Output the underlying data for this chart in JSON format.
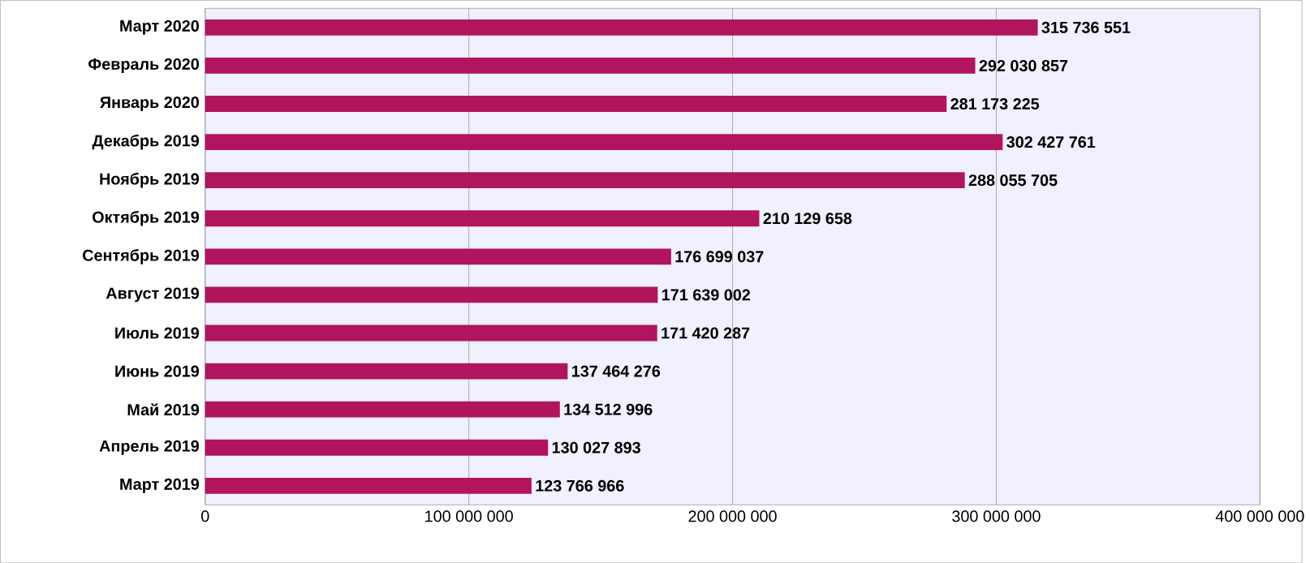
{
  "chart_data": {
    "type": "bar",
    "orientation": "horizontal",
    "categories": [
      "Март 2020",
      "Февраль 2020",
      "Январь 2020",
      "Декабрь 2019",
      "Ноябрь 2019",
      "Октябрь 2019",
      "Сентябрь 2019",
      "Август 2019",
      "Июль 2019",
      "Июнь 2019",
      "Май 2019",
      "Апрель 2019",
      "Март 2019"
    ],
    "values": [
      315736551,
      292030857,
      281173225,
      302427761,
      288055705,
      210129658,
      176699037,
      171639002,
      171420287,
      137464276,
      134512996,
      130027893,
      123766966
    ],
    "value_labels": [
      "315 736 551",
      "292 030 857",
      "281 173 225",
      "302 427 761",
      "288 055 705",
      "210 129 658",
      "176 699 037",
      "171 639 002",
      "171 420 287",
      "137 464 276",
      "134 512 996",
      "130 027 893",
      "123 766 966"
    ],
    "color": "#b0155e",
    "xlim": [
      0,
      400000000
    ],
    "xticks": [
      0,
      {
        "value": 100000000,
        "label": "100 000 000"
      },
      {
        "value": 200000000,
        "label": "200 000 000"
      },
      {
        "value": 300000000,
        "label": "300 000 000"
      },
      {
        "value": 400000000,
        "label": "400 000 000"
      }
    ],
    "grid": "x"
  }
}
